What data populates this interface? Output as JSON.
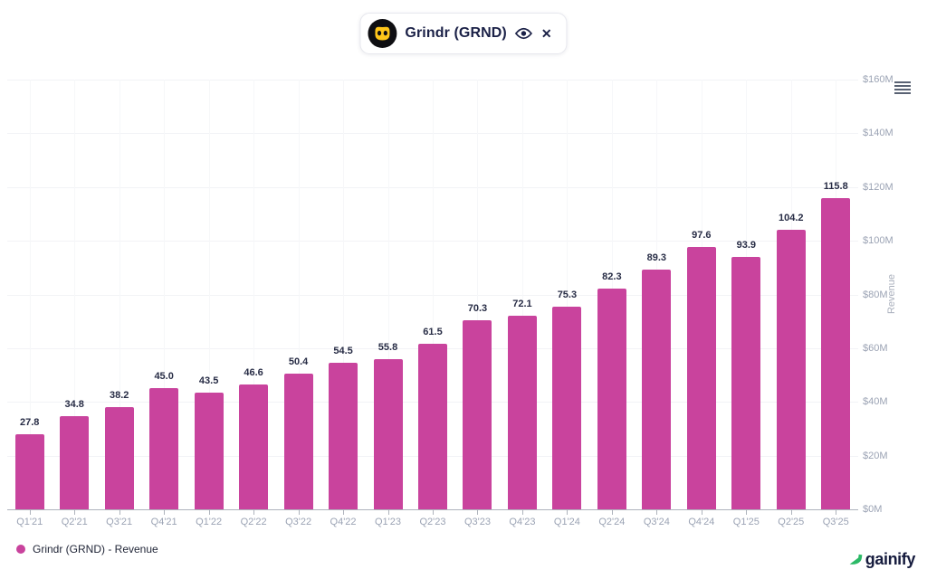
{
  "pill": {
    "label": "Grindr (GRND)",
    "eye_icon": "visibility-eye",
    "close_glyph": "✕"
  },
  "chart_data": {
    "type": "bar",
    "title": "",
    "categories": [
      "Q1'21",
      "Q2'21",
      "Q3'21",
      "Q4'21",
      "Q1'22",
      "Q2'22",
      "Q3'22",
      "Q4'22",
      "Q1'23",
      "Q2'23",
      "Q3'23",
      "Q4'23",
      "Q1'24",
      "Q2'24",
      "Q3'24",
      "Q4'24",
      "Q1'25",
      "Q2'25",
      "Q3'25"
    ],
    "series": [
      {
        "name": "Grindr (GRND) - Revenue",
        "color": "#C9439D",
        "values": [
          27.8,
          34.8,
          38.2,
          45.0,
          43.5,
          46.6,
          50.4,
          54.5,
          55.8,
          61.5,
          70.3,
          72.1,
          75.3,
          82.3,
          89.3,
          97.6,
          93.9,
          104.2,
          115.8
        ]
      }
    ],
    "ylabel": "Revenue",
    "xlabel": "",
    "ylim": [
      0,
      160
    ],
    "y_tick_step": 20,
    "y_tick_labels": [
      "$0M",
      "$20M",
      "$40M",
      "$60M",
      "$80M",
      "$100M",
      "$120M",
      "$140M",
      "$160M"
    ],
    "grid": true,
    "value_labels": true,
    "legend_position": "bottom-left"
  },
  "legend": {
    "label": "Grindr (GRND) - Revenue"
  },
  "branding": {
    "logo_text": "gainify",
    "accent_green": "#2BB966"
  },
  "colors": {
    "bar": "#C9439D",
    "navy_text": "#1B2147",
    "axis_text": "#9BA3B4",
    "grindr_yellow": "#FFC61A"
  },
  "icons": {
    "pill_logo": "grindr-mask-icon",
    "eye": "eye-icon",
    "close": "close-icon",
    "context_menu": "hamburger-icon",
    "brand": "growth-arrow-icon"
  }
}
